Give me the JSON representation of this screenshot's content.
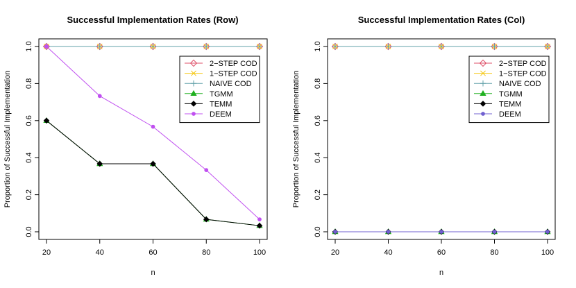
{
  "chart_data": [
    {
      "type": "line",
      "title": "Successful Implementation Rates (Row)",
      "xlabel": "n",
      "ylabel": "Proportion of Successful Implementation",
      "x": [
        20,
        40,
        60,
        80,
        100
      ],
      "xticks": [
        "20",
        "40",
        "60",
        "80",
        "100"
      ],
      "yticks": [
        "0.0",
        "0.2",
        "0.4",
        "0.6",
        "0.8",
        "1.0"
      ],
      "xlim": [
        20,
        100
      ],
      "ylim": [
        0,
        1
      ],
      "legend_position": "top-right",
      "series": [
        {
          "name": "2−STEP COD",
          "values": [
            1,
            1,
            1,
            1,
            1
          ],
          "color": "#DF536B",
          "marker": "diamond-open"
        },
        {
          "name": "1−STEP COD",
          "values": [
            1,
            1,
            1,
            1,
            1
          ],
          "color": "#F5C710",
          "marker": "x"
        },
        {
          "name": "NAIVE COD",
          "values": [
            1,
            1,
            1,
            1,
            1
          ],
          "color": "#61A0A8",
          "marker": "plus"
        },
        {
          "name": "TGMM",
          "values": [
            0.6,
            0.367,
            0.367,
            0.067,
            0.033
          ],
          "color": "#20B020",
          "marker": "triangle"
        },
        {
          "name": "TEMM",
          "values": [
            0.6,
            0.367,
            0.367,
            0.067,
            0.033
          ],
          "color": "#000000",
          "marker": "diamond"
        },
        {
          "name": "DEEM",
          "values": [
            1,
            0.733,
            0.567,
            0.333,
            0.067
          ],
          "color": "#C050F0",
          "marker": "circle"
        }
      ]
    },
    {
      "type": "line",
      "title": "Successful Implementation Rates (Col)",
      "xlabel": "n",
      "ylabel": "Proportion of Successful Implementation",
      "x": [
        20,
        40,
        60,
        80,
        100
      ],
      "xticks": [
        "20",
        "40",
        "60",
        "80",
        "100"
      ],
      "yticks": [
        "0.0",
        "0.2",
        "0.4",
        "0.6",
        "0.8",
        "1.0"
      ],
      "xlim": [
        20,
        100
      ],
      "ylim": [
        0,
        1
      ],
      "legend_position": "top-right",
      "series": [
        {
          "name": "2−STEP COD",
          "values": [
            1,
            1,
            1,
            1,
            1
          ],
          "color": "#DF536B",
          "marker": "diamond-open"
        },
        {
          "name": "1−STEP COD",
          "values": [
            1,
            1,
            1,
            1,
            1
          ],
          "color": "#F5C710",
          "marker": "x"
        },
        {
          "name": "NAIVE COD",
          "values": [
            1,
            1,
            1,
            1,
            1
          ],
          "color": "#61A0A8",
          "marker": "plus"
        },
        {
          "name": "TGMM",
          "values": [
            0,
            0,
            0,
            0,
            0
          ],
          "color": "#20B020",
          "marker": "triangle"
        },
        {
          "name": "TEMM",
          "values": [
            0,
            0,
            0,
            0,
            0
          ],
          "color": "#000000",
          "marker": "diamond"
        },
        {
          "name": "DEEM",
          "values": [
            0,
            0,
            0,
            0,
            0
          ],
          "color": "#7060D0",
          "marker": "circle"
        }
      ]
    }
  ]
}
